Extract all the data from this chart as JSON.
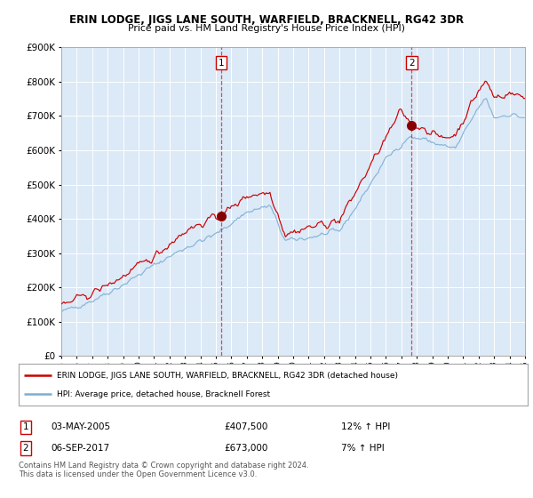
{
  "title": "ERIN LODGE, JIGS LANE SOUTH, WARFIELD, BRACKNELL, RG42 3DR",
  "subtitle": "Price paid vs. HM Land Registry's House Price Index (HPI)",
  "bg_color": "#dce9f7",
  "red_line_color": "#cc0000",
  "blue_line_color": "#7bafd4",
  "marker_color": "#880000",
  "sale1_year": 2005.34,
  "sale1_price": 407500,
  "sale2_year": 2017.67,
  "sale2_price": 673000,
  "footnote1": "Contains HM Land Registry data © Crown copyright and database right 2024.",
  "footnote2": "This data is licensed under the Open Government Licence v3.0.",
  "legend_red": "ERIN LODGE, JIGS LANE SOUTH, WARFIELD, BRACKNELL, RG42 3DR (detached house)",
  "legend_blue": "HPI: Average price, detached house, Bracknell Forest",
  "ann1_date": "03-MAY-2005",
  "ann1_price": "£407,500",
  "ann1_hpi": "12% ↑ HPI",
  "ann2_date": "06-SEP-2017",
  "ann2_price": "£673,000",
  "ann2_hpi": "7% ↑ HPI",
  "ylim_min": 0,
  "ylim_max": 900000,
  "xmin": 1995,
  "xmax": 2025
}
